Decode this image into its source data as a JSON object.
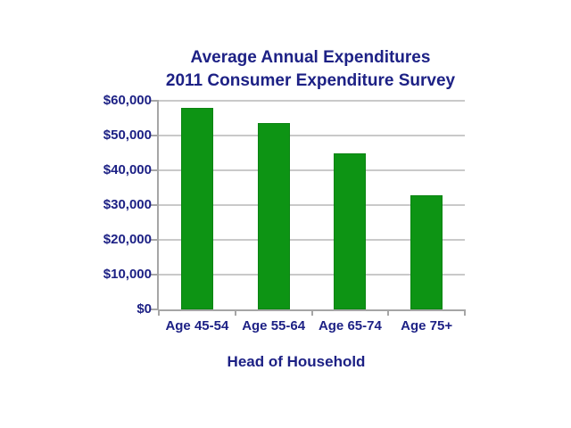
{
  "title": {
    "line1": "Average Annual Expenditures",
    "line2": "2011 Consumer Expenditure Survey"
  },
  "x_axis_title": "Head of Household",
  "chart_data": {
    "type": "bar",
    "title": "Average Annual Expenditures",
    "subtitle": "2011 Consumer Expenditure Survey",
    "categories": [
      "Age 45-54",
      "Age 55-64",
      "Age 65-74",
      "Age 75+"
    ],
    "values": [
      58000,
      53600,
      44800,
      32900
    ],
    "xlabel": "Head of Household",
    "ylabel": "",
    "ylim": [
      0,
      60000
    ],
    "ytick_step": 10000,
    "ytick_labels": [
      "$0",
      "$10,000",
      "$20,000",
      "$30,000",
      "$40,000",
      "$50,000",
      "$60,000"
    ],
    "grid": true,
    "legend": false
  },
  "colors": {
    "bar_fill": "#0d9414",
    "bar_border": "#0b8412",
    "text": "#1d2185",
    "gridline": "#c9c9c9",
    "axis_line": "#a6a6a6",
    "background": "#ffffff"
  }
}
